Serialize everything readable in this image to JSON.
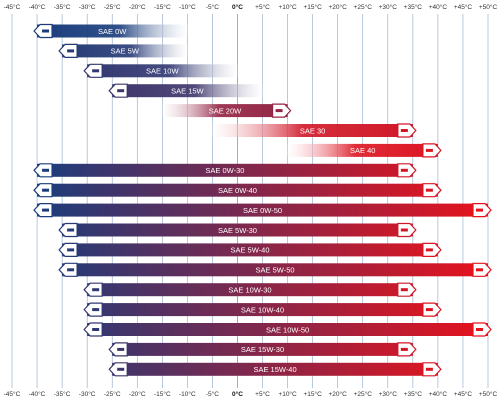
{
  "chart_data": {
    "type": "bar",
    "orientation": "horizontal-range",
    "title": "",
    "xlabel": "",
    "ylabel": "",
    "xlim": [
      -45,
      50
    ],
    "xticks": [
      -45,
      -40,
      -35,
      -30,
      -25,
      -20,
      -15,
      -10,
      -5,
      0,
      5,
      10,
      15,
      20,
      25,
      30,
      35,
      40,
      45,
      50
    ],
    "tick_labels": [
      "-45°C",
      "-40°C",
      "-35°C",
      "-30°C",
      "-25°C",
      "-20°C",
      "-15°C",
      "-10°C",
      "-5°C",
      "0°C",
      "+5°C",
      "+10°C",
      "+15°C",
      "+20°C",
      "+25°C",
      "+30°C",
      "+35°C",
      "+40°C",
      "+45°C",
      "+50°C"
    ],
    "grid": true,
    "colors": {
      "cold": "#1a3d7c",
      "hot": "#e8121c",
      "grid": "#8aa6c8",
      "fade": "#ffffff"
    },
    "series": [
      {
        "name": "SAE 0W",
        "min": -40,
        "max": -10,
        "open_end": "max"
      },
      {
        "name": "SAE 5W",
        "min": -35,
        "max": -10,
        "open_end": "max"
      },
      {
        "name": "SAE 10W",
        "min": -30,
        "max": 0,
        "open_end": "max"
      },
      {
        "name": "SAE 15W",
        "min": -25,
        "max": 5,
        "open_end": "max"
      },
      {
        "name": "SAE 20W",
        "min": -15,
        "max": 10,
        "open_end": "min"
      },
      {
        "name": "SAE 30",
        "min": -5,
        "max": 35,
        "open_end": "min"
      },
      {
        "name": "SAE 40",
        "min": 10,
        "max": 40,
        "open_end": "min"
      },
      {
        "name": "SAE 0W-30",
        "min": -40,
        "max": 35,
        "open_end": "none"
      },
      {
        "name": "SAE 0W-40",
        "min": -40,
        "max": 40,
        "open_end": "none"
      },
      {
        "name": "SAE 0W-50",
        "min": -40,
        "max": 50,
        "open_end": "none"
      },
      {
        "name": "SAE 5W-30",
        "min": -35,
        "max": 35,
        "open_end": "none"
      },
      {
        "name": "SAE 5W-40",
        "min": -35,
        "max": 40,
        "open_end": "none"
      },
      {
        "name": "SAE 5W-50",
        "min": -35,
        "max": 50,
        "open_end": "none"
      },
      {
        "name": "SAE 10W-30",
        "min": -30,
        "max": 35,
        "open_end": "none"
      },
      {
        "name": "SAE 10W-40",
        "min": -30,
        "max": 40,
        "open_end": "none"
      },
      {
        "name": "SAE 10W-50",
        "min": -30,
        "max": 50,
        "open_end": "none"
      },
      {
        "name": "SAE 15W-30",
        "min": -25,
        "max": 35,
        "open_end": "none"
      },
      {
        "name": "SAE 15W-40",
        "min": -25,
        "max": 40,
        "open_end": "none"
      }
    ]
  }
}
